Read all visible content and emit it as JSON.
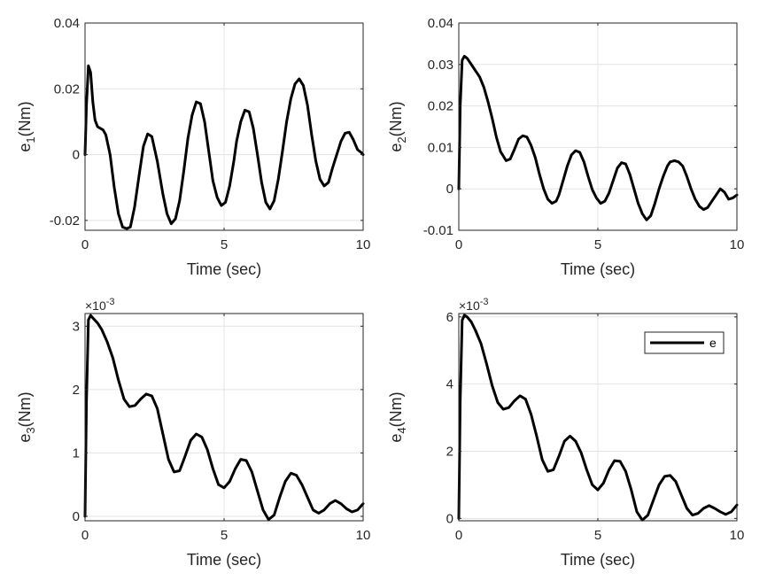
{
  "chart_data": [
    {
      "type": "line",
      "ylabel_main": "e",
      "ylabel_sub": "1",
      "ylabel_unit": "(Nm)",
      "xlabel": "Time (sec)",
      "xlim": [
        0,
        10
      ],
      "ylim": [
        -0.023,
        0.04
      ],
      "xticks": [
        0,
        5,
        10
      ],
      "xtick_labels": [
        "0",
        "5",
        "10"
      ],
      "yticks": [
        -0.02,
        0,
        0.02,
        0.04
      ],
      "ytick_labels": [
        "-0.02",
        "0",
        "0.02",
        "0.04"
      ],
      "exponent": null,
      "grid": true,
      "series": [
        {
          "name": "e",
          "color": "#000000",
          "x": [
            0,
            0.05,
            0.12,
            0.2,
            0.28,
            0.36,
            0.45,
            0.55,
            0.65,
            0.75,
            0.9,
            1.05,
            1.2,
            1.35,
            1.5,
            1.63,
            1.78,
            1.95,
            2.1,
            2.25,
            2.4,
            2.6,
            2.8,
            2.95,
            3.1,
            3.25,
            3.4,
            3.55,
            3.7,
            3.85,
            4.0,
            4.15,
            4.3,
            4.45,
            4.6,
            4.75,
            4.9,
            5.05,
            5.2,
            5.35,
            5.45,
            5.6,
            5.75,
            5.9,
            6.05,
            6.2,
            6.35,
            6.5,
            6.65,
            6.8,
            6.95,
            7.1,
            7.25,
            7.4,
            7.55,
            7.7,
            7.85,
            8.0,
            8.15,
            8.3,
            8.45,
            8.6,
            8.75,
            8.9,
            9.05,
            9.2,
            9.35,
            9.5,
            9.65,
            9.8,
            9.95,
            10.0
          ],
          "y": [
            0,
            0.015,
            0.027,
            0.025,
            0.016,
            0.0105,
            0.0085,
            0.008,
            0.0075,
            0.006,
            0.0,
            -0.01,
            -0.018,
            -0.022,
            -0.0225,
            -0.022,
            -0.016,
            -0.006,
            0.0025,
            0.0063,
            0.0055,
            -0.002,
            -0.012,
            -0.018,
            -0.021,
            -0.0195,
            -0.014,
            -0.005,
            0.005,
            0.012,
            0.016,
            0.0155,
            0.01,
            0.001,
            -0.008,
            -0.013,
            -0.0155,
            -0.0145,
            -0.0095,
            -0.002,
            0.004,
            0.01,
            0.0135,
            0.013,
            0.008,
            0.0,
            -0.0085,
            -0.0145,
            -0.0165,
            -0.014,
            -0.0075,
            0.001,
            0.01,
            0.017,
            0.0215,
            0.023,
            0.021,
            0.015,
            0.006,
            -0.002,
            -0.0075,
            -0.0095,
            -0.0085,
            -0.004,
            0.0,
            0.004,
            0.0065,
            0.0068,
            0.0045,
            0.0015,
            0.0005,
            0.0
          ]
        }
      ]
    },
    {
      "type": "line",
      "ylabel_main": "e",
      "ylabel_sub": "2",
      "ylabel_unit": "(Nm)",
      "xlabel": "Time (sec)",
      "xlim": [
        0,
        10
      ],
      "ylim": [
        -0.01,
        0.04
      ],
      "xticks": [
        0,
        5,
        10
      ],
      "xtick_labels": [
        "0",
        "5",
        "10"
      ],
      "yticks": [
        -0.01,
        0,
        0.01,
        0.02,
        0.03,
        0.04
      ],
      "ytick_labels": [
        "-0.01",
        "0",
        "0.01",
        "0.02",
        "0.03",
        "0.04"
      ],
      "exponent": null,
      "grid": true,
      "series": [
        {
          "name": "e",
          "color": "#000000",
          "x": [
            0,
            0.05,
            0.12,
            0.2,
            0.3,
            0.4,
            0.5,
            0.6,
            0.75,
            0.9,
            1.05,
            1.2,
            1.35,
            1.5,
            1.7,
            1.85,
            2.0,
            2.15,
            2.3,
            2.45,
            2.6,
            2.75,
            2.9,
            3.05,
            3.2,
            3.35,
            3.5,
            3.6,
            3.75,
            3.9,
            4.05,
            4.2,
            4.35,
            4.5,
            4.65,
            4.8,
            4.95,
            5.1,
            5.25,
            5.4,
            5.55,
            5.7,
            5.85,
            6.0,
            6.15,
            6.3,
            6.45,
            6.6,
            6.75,
            6.9,
            7.05,
            7.2,
            7.35,
            7.5,
            7.6,
            7.75,
            7.9,
            8.05,
            8.2,
            8.35,
            8.5,
            8.65,
            8.8,
            8.95,
            9.1,
            9.25,
            9.4,
            9.55,
            9.7,
            9.85,
            10.0
          ],
          "y": [
            0,
            0.02,
            0.031,
            0.032,
            0.0315,
            0.0305,
            0.0295,
            0.0285,
            0.027,
            0.0245,
            0.021,
            0.017,
            0.0125,
            0.009,
            0.0068,
            0.0072,
            0.0095,
            0.012,
            0.0128,
            0.0125,
            0.0105,
            0.0075,
            0.0035,
            0.0,
            -0.0025,
            -0.0035,
            -0.003,
            -0.0015,
            0.002,
            0.0055,
            0.0082,
            0.0092,
            0.0088,
            0.0065,
            0.003,
            -0.0002,
            -0.0022,
            -0.0035,
            -0.003,
            -0.001,
            0.002,
            0.005,
            0.0063,
            0.006,
            0.0035,
            0.0,
            -0.0035,
            -0.006,
            -0.0075,
            -0.0065,
            -0.0035,
            0.0,
            0.003,
            0.0055,
            0.0065,
            0.0068,
            0.0065,
            0.0055,
            0.003,
            0.0,
            -0.0025,
            -0.0042,
            -0.005,
            -0.0045,
            -0.003,
            -0.0015,
            0.0,
            -0.0008,
            -0.0025,
            -0.0022,
            -0.0015
          ]
        }
      ]
    },
    {
      "type": "line",
      "ylabel_main": "e",
      "ylabel_sub": "3",
      "ylabel_unit": "(Nm)",
      "xlabel": "Time (sec)",
      "xlim": [
        0,
        10
      ],
      "ylim": [
        -0.07,
        3.2
      ],
      "xticks": [
        0,
        5,
        10
      ],
      "xtick_labels": [
        "0",
        "5",
        "10"
      ],
      "yticks": [
        0,
        1,
        2,
        3
      ],
      "ytick_labels": [
        "0",
        "1",
        "2",
        "3"
      ],
      "exponent": {
        "base": "×10",
        "power": "-3"
      },
      "grid": true,
      "series": [
        {
          "name": "e",
          "color": "#000000",
          "x": [
            0,
            0.05,
            0.12,
            0.2,
            0.3,
            0.45,
            0.6,
            0.8,
            1.0,
            1.2,
            1.4,
            1.6,
            1.8,
            2.0,
            2.2,
            2.4,
            2.6,
            2.8,
            3.0,
            3.2,
            3.4,
            3.6,
            3.8,
            4.0,
            4.2,
            4.4,
            4.6,
            4.8,
            5.0,
            5.2,
            5.4,
            5.6,
            5.8,
            6.0,
            6.2,
            6.4,
            6.6,
            6.8,
            7.0,
            7.2,
            7.4,
            7.6,
            7.8,
            8.0,
            8.2,
            8.4,
            8.6,
            8.8,
            9.0,
            9.2,
            9.4,
            9.6,
            9.8,
            10.0
          ],
          "y": [
            0.0,
            1.8,
            3.1,
            3.17,
            3.12,
            3.05,
            2.95,
            2.75,
            2.5,
            2.15,
            1.85,
            1.73,
            1.75,
            1.85,
            1.93,
            1.9,
            1.7,
            1.3,
            0.9,
            0.7,
            0.72,
            0.95,
            1.2,
            1.3,
            1.25,
            1.05,
            0.75,
            0.5,
            0.45,
            0.55,
            0.75,
            0.9,
            0.88,
            0.7,
            0.4,
            0.1,
            -0.05,
            0.02,
            0.3,
            0.55,
            0.68,
            0.65,
            0.5,
            0.3,
            0.1,
            0.05,
            0.1,
            0.2,
            0.25,
            0.2,
            0.12,
            0.07,
            0.1,
            0.2
          ]
        }
      ]
    },
    {
      "type": "line",
      "ylabel_main": "e",
      "ylabel_sub": "4",
      "ylabel_unit": "(Nm)",
      "xlabel": "Time (sec)",
      "xlim": [
        0,
        10
      ],
      "ylim": [
        -0.07,
        6.1
      ],
      "xticks": [
        0,
        5,
        10
      ],
      "xtick_labels": [
        "0",
        "5",
        "10"
      ],
      "yticks": [
        0,
        2,
        4,
        6
      ],
      "ytick_labels": [
        "0",
        "2",
        "4",
        "6"
      ],
      "exponent": {
        "base": "×10",
        "power": "-3"
      },
      "grid": true,
      "legend": {
        "label": "e",
        "placement": "top-right"
      },
      "series": [
        {
          "name": "e",
          "color": "#000000",
          "x": [
            0,
            0.05,
            0.12,
            0.2,
            0.3,
            0.45,
            0.6,
            0.8,
            1.0,
            1.2,
            1.4,
            1.6,
            1.8,
            2.0,
            2.2,
            2.4,
            2.6,
            2.8,
            3.0,
            3.2,
            3.4,
            3.6,
            3.8,
            4.0,
            4.2,
            4.4,
            4.6,
            4.8,
            5.0,
            5.2,
            5.4,
            5.6,
            5.8,
            6.0,
            6.2,
            6.4,
            6.6,
            6.8,
            7.0,
            7.2,
            7.4,
            7.6,
            7.8,
            8.0,
            8.2,
            8.4,
            8.6,
            8.8,
            9.0,
            9.2,
            9.4,
            9.6,
            9.8,
            10.0
          ],
          "y": [
            0.0,
            3.5,
            5.9,
            6.05,
            6.0,
            5.85,
            5.6,
            5.2,
            4.6,
            3.95,
            3.45,
            3.25,
            3.3,
            3.5,
            3.65,
            3.55,
            3.1,
            2.45,
            1.75,
            1.4,
            1.45,
            1.85,
            2.3,
            2.45,
            2.3,
            1.95,
            1.45,
            1.0,
            0.85,
            1.05,
            1.45,
            1.72,
            1.7,
            1.4,
            0.85,
            0.2,
            -0.05,
            0.1,
            0.55,
            1.0,
            1.25,
            1.28,
            1.1,
            0.7,
            0.3,
            0.1,
            0.15,
            0.3,
            0.38,
            0.3,
            0.2,
            0.12,
            0.2,
            0.4
          ]
        }
      ]
    }
  ]
}
